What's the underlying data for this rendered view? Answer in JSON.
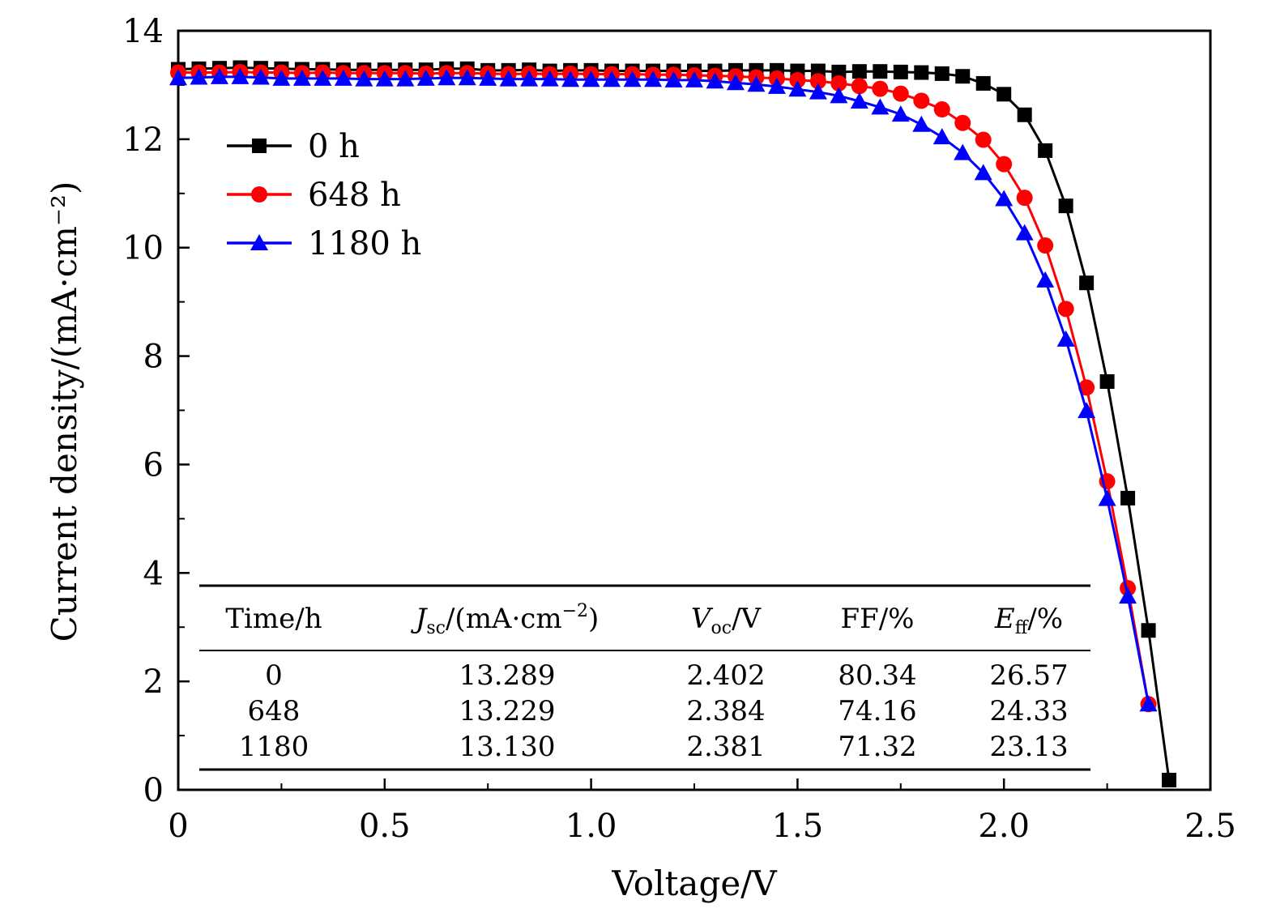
{
  "chart_data": {
    "type": "line",
    "xlabel": "Voltage/V",
    "ylabel": "Current density/(mA·cm⁻²)",
    "xlim": [
      0,
      2.5
    ],
    "ylim": [
      0,
      14
    ],
    "xticks": [
      0,
      0.5,
      1.0,
      1.5,
      2.0,
      2.5
    ],
    "xtick_labels": [
      "0",
      "0.5",
      "1.0",
      "1.5",
      "2.0",
      "2.5"
    ],
    "yticks": [
      0,
      2,
      4,
      6,
      8,
      10,
      12,
      14
    ],
    "ytick_labels": [
      "0",
      "2",
      "4",
      "6",
      "8",
      "10",
      "12",
      "14"
    ],
    "grid": false,
    "legend_position": "top-left",
    "series": [
      {
        "name": "0 h",
        "color": "#000000",
        "marker": "square",
        "x": [
          0,
          0.05,
          0.1,
          0.15,
          0.2,
          0.25,
          0.3,
          0.35,
          0.4,
          0.45,
          0.5,
          0.55,
          0.6,
          0.65,
          0.7,
          0.75,
          0.8,
          0.85,
          0.9,
          0.95,
          1.0,
          1.05,
          1.1,
          1.15,
          1.2,
          1.25,
          1.3,
          1.35,
          1.4,
          1.45,
          1.5,
          1.55,
          1.6,
          1.65,
          1.7,
          1.75,
          1.8,
          1.85,
          1.9,
          1.95,
          2.0,
          2.05,
          2.1,
          2.15,
          2.2,
          2.25,
          2.3,
          2.35,
          2.4
        ],
        "y": [
          13.29,
          13.3,
          13.31,
          13.32,
          13.31,
          13.3,
          13.29,
          13.29,
          13.28,
          13.28,
          13.28,
          13.28,
          13.28,
          13.3,
          13.3,
          13.27,
          13.27,
          13.28,
          13.26,
          13.27,
          13.27,
          13.26,
          13.26,
          13.26,
          13.26,
          13.26,
          13.26,
          13.27,
          13.27,
          13.27,
          13.26,
          13.26,
          13.24,
          13.25,
          13.25,
          13.24,
          13.23,
          13.21,
          13.16,
          13.03,
          12.83,
          12.45,
          11.79,
          10.77,
          9.35,
          7.53,
          5.38,
          2.94,
          0.18
        ]
      },
      {
        "name": "648 h",
        "color": "#ff0000",
        "marker": "circle",
        "x": [
          0,
          0.05,
          0.1,
          0.15,
          0.2,
          0.25,
          0.3,
          0.35,
          0.4,
          0.45,
          0.5,
          0.55,
          0.6,
          0.65,
          0.7,
          0.75,
          0.8,
          0.85,
          0.9,
          0.95,
          1.0,
          1.05,
          1.1,
          1.15,
          1.2,
          1.25,
          1.3,
          1.35,
          1.4,
          1.45,
          1.5,
          1.55,
          1.6,
          1.65,
          1.7,
          1.75,
          1.8,
          1.85,
          1.9,
          1.95,
          2.0,
          2.05,
          2.1,
          2.15,
          2.2,
          2.25,
          2.3,
          2.35
        ],
        "y": [
          13.23,
          13.23,
          13.23,
          13.24,
          13.23,
          13.23,
          13.22,
          13.23,
          13.22,
          13.22,
          13.22,
          13.22,
          13.21,
          13.22,
          13.22,
          13.21,
          13.2,
          13.21,
          13.2,
          13.21,
          13.2,
          13.2,
          13.2,
          13.19,
          13.19,
          13.18,
          13.17,
          13.16,
          13.14,
          13.12,
          13.09,
          13.07,
          13.03,
          12.98,
          12.93,
          12.84,
          12.71,
          12.55,
          12.3,
          11.99,
          11.54,
          10.92,
          10.04,
          8.87,
          7.42,
          5.69,
          3.72,
          1.58
        ]
      },
      {
        "name": "1180 h",
        "color": "#0000ff",
        "marker": "triangle",
        "x": [
          0,
          0.05,
          0.1,
          0.15,
          0.2,
          0.25,
          0.3,
          0.35,
          0.4,
          0.45,
          0.5,
          0.55,
          0.6,
          0.65,
          0.7,
          0.75,
          0.8,
          0.85,
          0.9,
          0.95,
          1.0,
          1.05,
          1.1,
          1.15,
          1.2,
          1.25,
          1.3,
          1.35,
          1.4,
          1.45,
          1.5,
          1.55,
          1.6,
          1.65,
          1.7,
          1.75,
          1.8,
          1.85,
          1.9,
          1.95,
          2.0,
          2.05,
          2.1,
          2.15,
          2.2,
          2.25,
          2.3,
          2.35
        ],
        "y": [
          13.13,
          13.14,
          13.15,
          13.15,
          13.14,
          13.12,
          13.12,
          13.12,
          13.12,
          13.11,
          13.11,
          13.11,
          13.12,
          13.13,
          13.13,
          13.12,
          13.11,
          13.11,
          13.11,
          13.1,
          13.1,
          13.1,
          13.1,
          13.1,
          13.09,
          13.09,
          13.07,
          13.04,
          13.01,
          12.97,
          12.92,
          12.87,
          12.8,
          12.7,
          12.59,
          12.46,
          12.27,
          12.04,
          11.75,
          11.38,
          10.9,
          10.27,
          9.4,
          8.31,
          6.99,
          5.37,
          3.57,
          1.58
        ]
      }
    ],
    "table": {
      "headers": [
        "Time/h",
        "J",
        "sc",
        "/(mA·cm",
        "−2",
        ")",
        "V",
        "oc",
        "/V",
        "FF/%",
        "E",
        "ff",
        "/%"
      ],
      "rows": [
        [
          "0",
          "13.289",
          "2.402",
          "80.34",
          "26.57"
        ],
        [
          "648",
          "13.229",
          "2.384",
          "74.16",
          "24.33"
        ],
        [
          "1180",
          "13.130",
          "2.381",
          "71.32",
          "23.13"
        ]
      ]
    }
  }
}
